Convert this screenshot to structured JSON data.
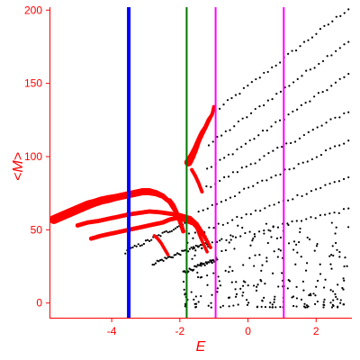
{
  "chart_data": {
    "type": "scatter",
    "title": "",
    "xlabel": "E",
    "ylabel": "<M>",
    "xlim": [
      -5.8,
      3.05
    ],
    "ylim": [
      -10,
      202
    ],
    "x_ticks": [
      -4,
      -2,
      0,
      2
    ],
    "y_ticks": [
      0,
      50,
      100,
      150,
      200
    ],
    "grid": false,
    "axis_color": "#ff0000",
    "colors": {
      "dense_points": "#ff0000",
      "sparse_points": "#000000",
      "line_blue": "#0000ff",
      "line_green": "#007700",
      "line_magenta": "#ff00ff"
    },
    "vertical_lines": [
      {
        "x": -3.5,
        "color": "#0000ff",
        "weight": "thick"
      },
      {
        "x": -1.8,
        "color": "#007700",
        "weight": "thin"
      },
      {
        "x": -0.95,
        "color": "#ff00ff",
        "weight": "thin"
      },
      {
        "x": 1.05,
        "color": "#ff00ff",
        "weight": "thin"
      }
    ],
    "red_series": [
      {
        "x": [
          -5.7,
          -5.5,
          -5.3,
          -5.1,
          -4.9,
          -4.7,
          -4.5,
          -4.3,
          -4.1,
          -3.9,
          -3.7,
          -3.5,
          -3.3,
          -3.1,
          -2.9,
          -2.7,
          -2.5,
          -2.3,
          -2.2,
          -2.1
        ],
        "y": [
          57,
          59,
          61,
          63,
          65,
          67,
          68.5,
          70,
          71,
          72,
          73,
          74,
          75,
          76,
          76,
          75,
          73,
          69,
          65,
          61
        ],
        "r": [
          5,
          5,
          5,
          5,
          5,
          5,
          4.5,
          4.5,
          4.5,
          4,
          4,
          4,
          4,
          4,
          4,
          3.5,
          3,
          2.5,
          2.2,
          2
        ]
      },
      {
        "x": [
          -5.0,
          -4.7,
          -4.4,
          -4.1,
          -3.8,
          -3.5,
          -3.2,
          -2.9,
          -2.6,
          -2.3,
          -2.0,
          -1.7,
          -1.5,
          -1.3,
          -1.1
        ],
        "y": [
          53,
          55,
          56,
          57.5,
          59,
          60.5,
          61.5,
          62.5,
          62,
          61,
          60,
          58,
          54,
          47,
          38
        ],
        "r": [
          2.5,
          2.5,
          2.5,
          2.5,
          2.5,
          2.5,
          2.5,
          2.5,
          2.5,
          2.5,
          2.5,
          2.5,
          2.2,
          2,
          2
        ]
      },
      {
        "x": [
          -4.6,
          -4.3,
          -4.0,
          -3.7,
          -3.4,
          -3.1,
          -2.8,
          -2.5,
          -2.3,
          -2.1,
          -1.9,
          -1.6,
          -1.4,
          -1.2
        ],
        "y": [
          44,
          46,
          47.5,
          49,
          50.5,
          52,
          53.5,
          55,
          57,
          58,
          57,
          54,
          49,
          42
        ],
        "r": [
          2.5,
          2.5,
          2.5,
          2.5,
          2.5,
          2.5,
          2.5,
          2.5,
          2.5,
          2.5,
          2.5,
          2.2,
          2,
          2
        ]
      },
      {
        "x": [
          -2.3,
          -2.2,
          -2.1,
          -2.0,
          -1.9
        ],
        "y": [
          70,
          67,
          62,
          56,
          49
        ],
        "r": [
          2.5,
          2.5,
          2.5,
          2.5,
          2.5
        ]
      },
      {
        "x": [
          -1.75,
          -1.65,
          -1.55,
          -1.45,
          -1.35,
          -1.25,
          -1.15,
          -1.05,
          -1.0
        ],
        "y": [
          96,
          100,
          105,
          111,
          116,
          120,
          125,
          129,
          134
        ],
        "r": [
          4.5,
          4,
          3.5,
          3,
          3,
          2.5,
          2.5,
          2,
          2
        ]
      },
      {
        "x": [
          -1.65,
          -1.55,
          -1.45,
          -1.35
        ],
        "y": [
          91,
          87,
          82,
          76
        ],
        "r": [
          2,
          2,
          2,
          2
        ]
      },
      {
        "x": [
          -2.75,
          -2.65,
          -2.55,
          -2.45,
          -2.35
        ],
        "y": [
          46,
          44,
          41,
          37,
          33
        ],
        "r": [
          1.8,
          1.8,
          1.8,
          1.8,
          1.8
        ]
      },
      {
        "x": [
          -1.5,
          -1.4,
          -1.3,
          -1.2
        ],
        "y": [
          51,
          45,
          40,
          35
        ],
        "r": [
          1.8,
          1.8,
          1.8,
          1.8
        ]
      }
    ],
    "black_bands": [
      {
        "x_start": -0.95,
        "x_end": 2.95,
        "y_start": 131,
        "y_end": 201
      },
      {
        "x_start": -1.15,
        "x_end": 2.95,
        "y_start": 108,
        "y_end": 179
      },
      {
        "x_start": -1.2,
        "x_end": 2.95,
        "y_start": 91,
        "y_end": 156
      },
      {
        "x_start": -1.35,
        "x_end": 2.95,
        "y_start": 77,
        "y_end": 131
      },
      {
        "x_start": -1.45,
        "x_end": 2.95,
        "y_start": 62,
        "y_end": 111
      },
      {
        "x_start": -1.55,
        "x_end": 2.95,
        "y_start": 47,
        "y_end": 86
      },
      {
        "x_start": -1.6,
        "x_end": 2.95,
        "y_start": 38,
        "y_end": 64
      },
      {
        "x_start": -3.6,
        "x_end": -1.8,
        "y_start": 35,
        "y_end": 55
      },
      {
        "x_start": -2.8,
        "x_end": -1.3,
        "y_start": 27,
        "y_end": 40
      },
      {
        "x_start": -1.9,
        "x_end": -0.9,
        "y_start": 21,
        "y_end": 30
      }
    ],
    "black_cloud": {
      "x_range": [
        -1.9,
        3.0
      ],
      "y_range": [
        -3,
        55
      ],
      "count": 240
    }
  }
}
